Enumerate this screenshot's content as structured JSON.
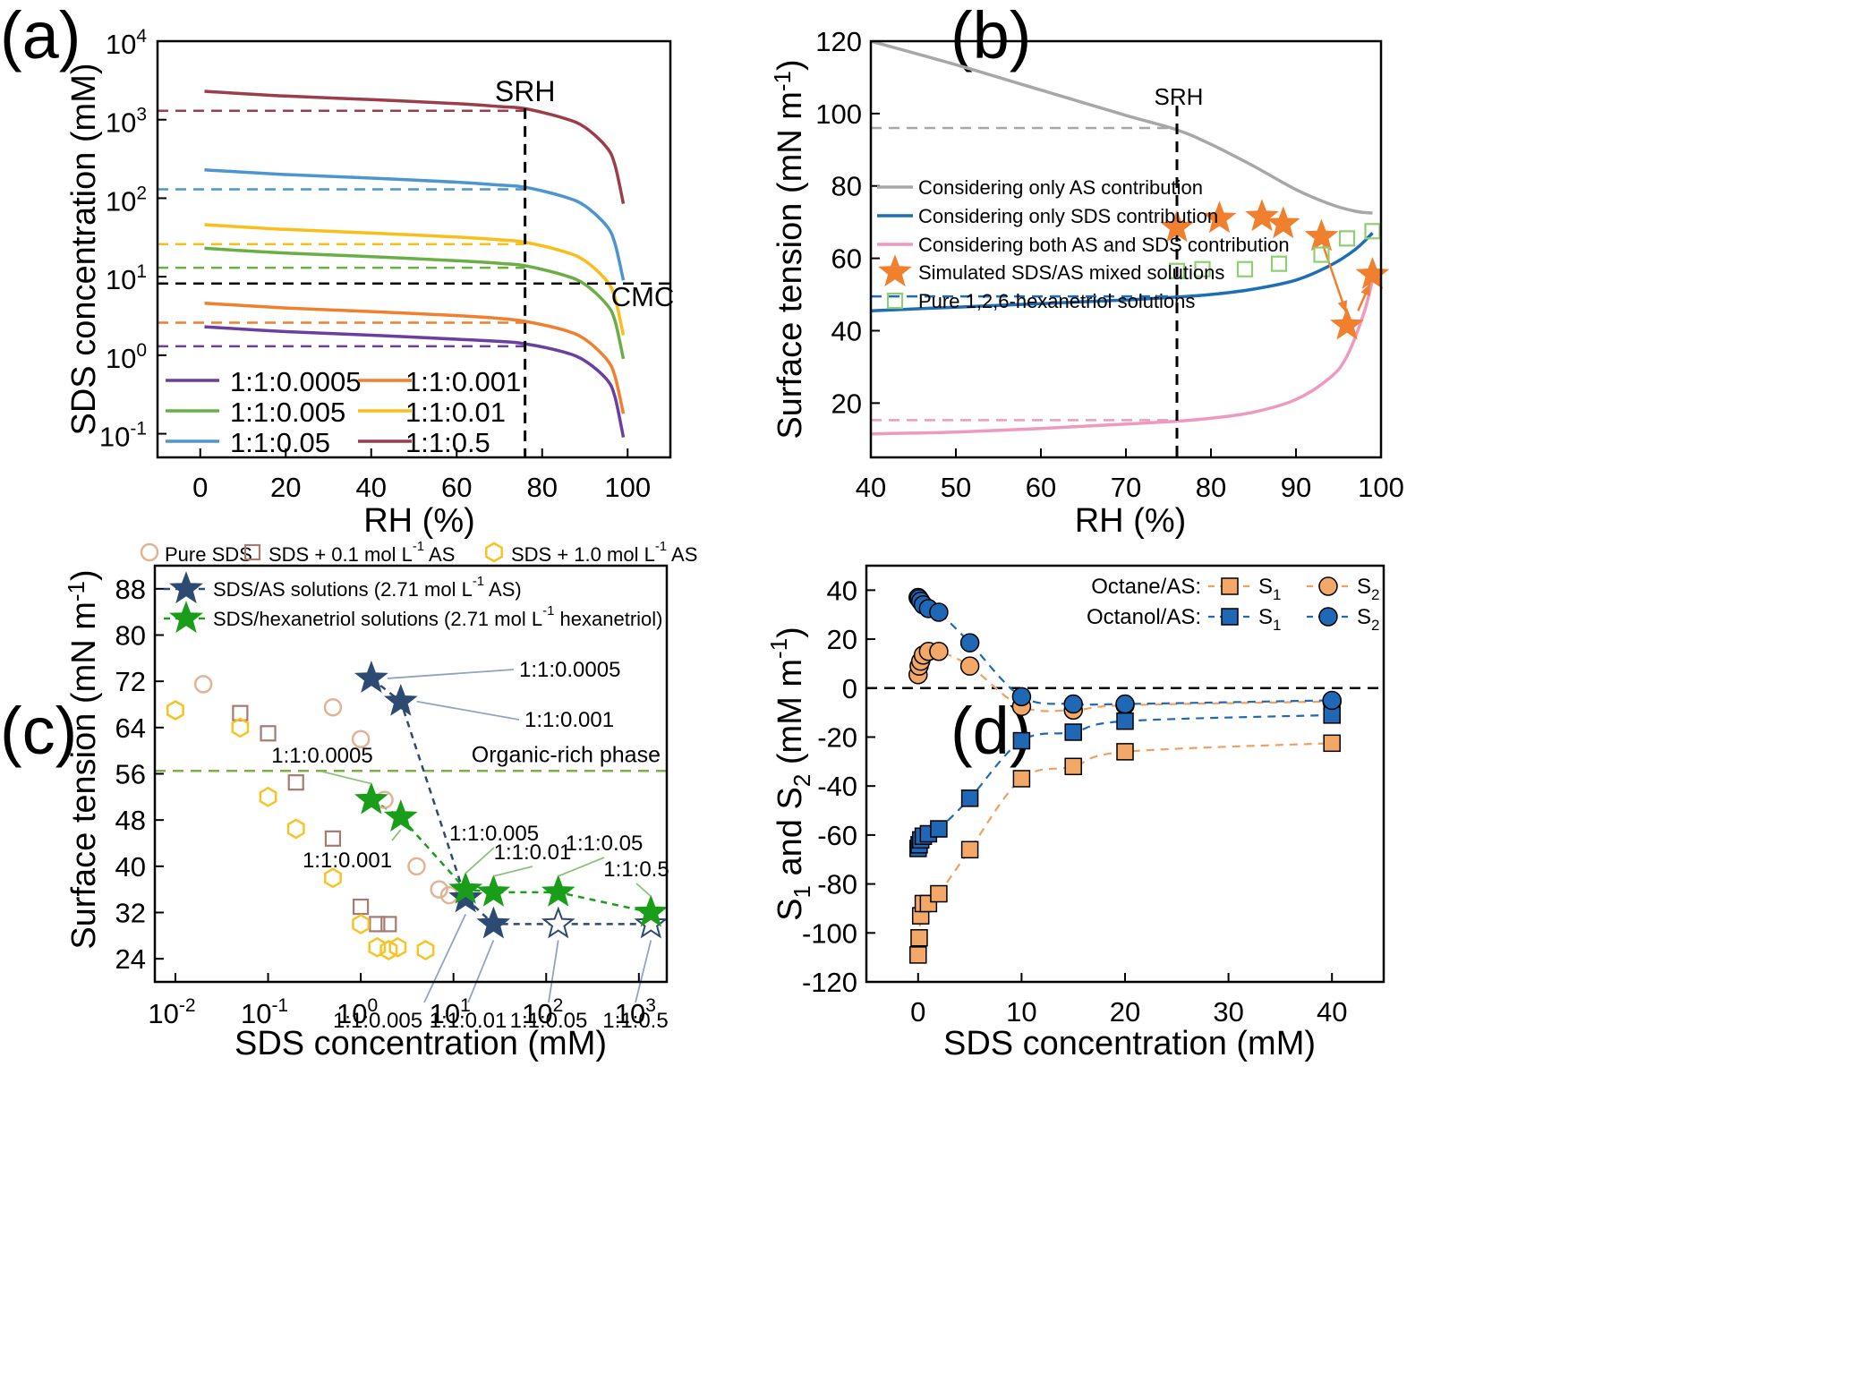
{
  "panel_labels": [
    "(a)",
    "(b)",
    "(c)",
    "(d)"
  ],
  "chart_data": [
    {
      "type": "line",
      "title": "",
      "xlabel": "RH (%)",
      "ylabel": "SDS concentration (mM)",
      "xlim": [
        -10,
        110
      ],
      "ylim": [
        0.05,
        10000
      ],
      "yscale": "log",
      "xticks": [
        0,
        20,
        40,
        60,
        80,
        100
      ],
      "yticks": [
        {
          "value": 0.1,
          "base": "10",
          "exp": "-1"
        },
        {
          "value": 1,
          "base": "10",
          "exp": "0"
        },
        {
          "value": 10,
          "base": "10",
          "exp": "1"
        },
        {
          "value": 100,
          "base": "10",
          "exp": "2"
        },
        {
          "value": 1000,
          "base": "10",
          "exp": "3"
        },
        {
          "value": 10000,
          "base": "10",
          "exp": "4"
        }
      ],
      "legend_position": "bottom-left",
      "annotations": [
        {
          "text": "SRH",
          "x": 76,
          "y": 3000
        },
        {
          "text": "CMC",
          "x": 101,
          "y": 6.5
        }
      ],
      "vlines": [
        {
          "x": 76,
          "color": "#000000",
          "style": "dashed"
        }
      ],
      "cmc_line": {
        "y": 8.2,
        "color": "#000000",
        "style": "dashed"
      },
      "series": [
        {
          "name": "1:1:0.0005",
          "color": "#6b3fa0",
          "x": [
            1,
            20,
            40,
            60,
            70,
            76,
            85,
            90,
            95,
            97,
            99
          ],
          "values": [
            2.3,
            2.0,
            1.8,
            1.6,
            1.5,
            1.4,
            1.1,
            0.85,
            0.5,
            0.3,
            0.09
          ],
          "srh_y": 1.3
        },
        {
          "name": "1:1:0.001",
          "color": "#f07f2e",
          "x": [
            1,
            20,
            40,
            60,
            70,
            76,
            85,
            90,
            95,
            97,
            99
          ],
          "values": [
            4.6,
            4.0,
            3.6,
            3.2,
            2.95,
            2.7,
            2.1,
            1.6,
            0.9,
            0.55,
            0.18
          ],
          "srh_y": 2.6
        },
        {
          "name": "1:1:0.005",
          "color": "#6aaf45",
          "x": [
            1,
            20,
            40,
            60,
            70,
            76,
            85,
            90,
            95,
            97,
            99
          ],
          "values": [
            23,
            20,
            18,
            16,
            14.8,
            13.8,
            10.5,
            8,
            4.5,
            2.8,
            0.9
          ],
          "srh_y": 13
        },
        {
          "name": "1:1:0.01",
          "color": "#f9be1a",
          "x": [
            1,
            20,
            40,
            60,
            70,
            76,
            85,
            90,
            95,
            97,
            99
          ],
          "values": [
            46,
            40,
            36,
            32,
            29.5,
            27.5,
            21,
            16,
            9,
            5.5,
            1.8
          ],
          "srh_y": 26
        },
        {
          "name": "1:1:0.05",
          "color": "#4c95cf",
          "x": [
            1,
            20,
            40,
            60,
            70,
            76,
            85,
            90,
            95,
            97,
            99
          ],
          "values": [
            230,
            200,
            180,
            160,
            147,
            138,
            105,
            80,
            45,
            27,
            9
          ],
          "srh_y": 130
        },
        {
          "name": "1:1:0.5",
          "color": "#9c3d4a",
          "x": [
            1,
            20,
            40,
            60,
            70,
            76,
            85,
            90,
            95,
            97,
            99
          ],
          "values": [
            2300,
            2000,
            1800,
            1600,
            1470,
            1380,
            1050,
            800,
            450,
            270,
            85
          ],
          "srh_y": 1300
        }
      ]
    },
    {
      "type": "line",
      "title": "",
      "xlabel": "RH (%)",
      "ylabel": "Surface tension (mN m-1)",
      "ylabel_main": "Surface tension (mN m",
      "ylabel_sup": "-1",
      "ylabel_end": ")",
      "xlim": [
        40,
        100
      ],
      "ylim": [
        5,
        120
      ],
      "xticks": [
        40,
        50,
        60,
        70,
        80,
        90,
        100
      ],
      "yticks": [
        20,
        40,
        60,
        80,
        100,
        120
      ],
      "legend_position": "center-left",
      "annotations": [
        {
          "text": "SRH",
          "x": 76,
          "y": 103
        }
      ],
      "vlines": [
        {
          "x": 76,
          "color": "#000000",
          "style": "dashed"
        }
      ],
      "series": [
        {
          "name": "Considering only AS contribution",
          "kind": "line",
          "color": "#a7a7a7",
          "x": [
            40,
            50,
            60,
            70,
            76,
            80,
            85,
            90,
            94,
            97,
            99
          ],
          "values": [
            120,
            113.5,
            106.5,
            99.5,
            95.5,
            91.5,
            85.5,
            79,
            75,
            73,
            72.5
          ],
          "srh_y": 96
        },
        {
          "name": "Considering only SDS contribution",
          "kind": "line",
          "color": "#1e6eb4",
          "x": [
            40,
            50,
            60,
            70,
            76,
            80,
            85,
            90,
            94,
            97,
            99
          ],
          "values": [
            45.5,
            46.5,
            47.5,
            48.5,
            49.3,
            50,
            51.5,
            54,
            58,
            62.5,
            67
          ],
          "srh_y": 49.5
        },
        {
          "name": "Considering both AS and SDS contribution",
          "kind": "line",
          "color": "#ee9ac0",
          "x": [
            40,
            50,
            60,
            70,
            76,
            80,
            85,
            90,
            94,
            96,
            98,
            99
          ],
          "values": [
            11.5,
            12,
            13,
            14.2,
            15,
            15.8,
            17.5,
            21,
            27,
            33,
            45,
            54
          ],
          "srh_y": 15.3
        },
        {
          "name": "Simulated SDS/AS mixed solutions",
          "kind": "star",
          "color": "#f07f2e",
          "x": [
            76,
            81,
            86,
            88.5,
            93,
            96,
            99
          ],
          "values": [
            68.5,
            71,
            71.5,
            69.5,
            66,
            41.5,
            55.5
          ]
        },
        {
          "name": "Pure 1,2,6-hexanetriol solutions",
          "kind": "square-open",
          "color": "#8fcf71",
          "x": [
            76,
            79,
            84,
            88,
            93,
            96,
            99
          ],
          "values": [
            56.5,
            57,
            57,
            58.5,
            61,
            65.5,
            67.5
          ]
        }
      ],
      "arrows": [
        {
          "x1": 93.2,
          "y1": 63.5,
          "x2": 95.9,
          "y2": 45
        },
        {
          "x1": 97.3,
          "y1": 45.5,
          "x2": 98.7,
          "y2": 53
        }
      ]
    },
    {
      "type": "scatter",
      "title": "",
      "xlabel": "SDS concentration (mM)",
      "ylabel": "Surface tension (mN m-1)",
      "ylabel_main": "Surface tension (mN m",
      "ylabel_sup": "-1",
      "ylabel_end": ")",
      "xscale": "log",
      "xlim": [
        0.006,
        2000
      ],
      "ylim": [
        20,
        92
      ],
      "xticks": [
        {
          "value": 0.01,
          "base": "10",
          "exp": "-2"
        },
        {
          "value": 0.1,
          "base": "10",
          "exp": "-1"
        },
        {
          "value": 1,
          "base": "10",
          "exp": "0"
        },
        {
          "value": 10,
          "base": "10",
          "exp": "1"
        },
        {
          "value": 100,
          "base": "10",
          "exp": "2"
        },
        {
          "value": 1000,
          "base": "10",
          "exp": "3"
        }
      ],
      "yticks": [
        24,
        32,
        40,
        48,
        56,
        64,
        72,
        80,
        88
      ],
      "legend_position": "top",
      "hline": {
        "y": 56.5,
        "label": "Organic-rich phase",
        "color": "#7bb144"
      },
      "series": [
        {
          "name": "Pure SDS",
          "marker": "circle-open",
          "color": "#e0b394",
          "x": [
            0.02,
            0.5,
            1,
            1.8,
            4,
            7,
            9
          ],
          "values": [
            71.5,
            67.5,
            62,
            51.5,
            40,
            36,
            35
          ]
        },
        {
          "name_main": "SDS + 0.1 mol L",
          "name_sup": "-1",
          "name_end": " AS",
          "marker": "square-open",
          "color": "#a57a70",
          "x": [
            0.05,
            0.1,
            0.2,
            0.5,
            1,
            1.5,
            2
          ],
          "values": [
            66.5,
            63,
            54.5,
            44.8,
            33,
            30,
            30
          ]
        },
        {
          "name_main": "SDS + 1.0 mol L",
          "name_sup": "-1",
          "name_end": " AS",
          "marker": "hexagon-open",
          "color": "#f7c325",
          "x": [
            0.01,
            0.05,
            0.1,
            0.2,
            0.5,
            1,
            1.5,
            2,
            2.5,
            5
          ],
          "values": [
            67,
            64,
            52,
            46.5,
            38,
            30,
            26,
            25.5,
            26,
            25.5
          ]
        },
        {
          "name_main": "SDS/AS solutions (2.71 mol L",
          "name_sup": "-1",
          "name_end": " AS)",
          "marker": "star",
          "color": "#2d4a73",
          "dashed": true,
          "x": [
            1.3,
            2.7,
            13.5,
            27,
            135,
            1350
          ],
          "values": [
            72.5,
            68.5,
            34.5,
            30,
            30,
            30
          ],
          "filled": [
            true,
            true,
            true,
            true,
            false,
            false
          ],
          "labels": [
            "1:1:0.0005",
            "1:1:0.001",
            "1:1:0.005",
            "1:1:0.01",
            "1:1:0.05",
            "1:1:0.5"
          ],
          "label_color": "#8fa4c4"
        },
        {
          "name_main": "SDS/hexanetriol solutions (2.71 mol L",
          "name_sup": "-1",
          "name_end": " hexanetriol)",
          "marker": "star",
          "color": "#1a9e1a",
          "dashed": true,
          "x": [
            1.3,
            2.7,
            13.5,
            27,
            135,
            1350
          ],
          "values": [
            51.5,
            48.5,
            36,
            35.5,
            35.5,
            32
          ],
          "filled": [
            true,
            true,
            true,
            true,
            true,
            true
          ],
          "labels": [
            "1:1:0.0005",
            "1:1:0.001",
            "1:1:0.005",
            "1:1:0.01",
            "1:1:0.05",
            "1:1:0.5"
          ],
          "label_color": "#8fc07a"
        }
      ]
    },
    {
      "type": "scatter",
      "title": "",
      "xlabel": "SDS concentration (mM)",
      "ylabel": "S1 and S2 (mM m-1)",
      "xlim": [
        -5,
        45
      ],
      "ylim": [
        -120,
        50
      ],
      "xticks": [
        0,
        10,
        20,
        30,
        40
      ],
      "yticks": [
        -120,
        -100,
        -80,
        -60,
        -40,
        -20,
        0,
        20,
        40
      ],
      "legend_position": "top-right",
      "legend_groups": [
        "Octane/AS:",
        "Octanol/AS:"
      ],
      "hline": {
        "y": 0,
        "color": "#000000",
        "style": "dashed"
      },
      "series": [
        {
          "group": "Octane/AS:",
          "name": "S1",
          "marker": "square",
          "color": "#f3a867",
          "line_color": "#f0a060",
          "x": [
            0,
            0.1,
            0.25,
            0.5,
            1,
            2,
            5,
            10,
            15,
            20,
            40
          ],
          "values": [
            -109,
            -102,
            -93,
            -88,
            -88,
            -84,
            -66,
            -37,
            -32,
            -26,
            -22.5
          ]
        },
        {
          "group": "Octane/AS:",
          "name": "S2",
          "marker": "circle",
          "color": "#f3a867",
          "line_color": "#f0a060",
          "x": [
            0,
            0.1,
            0.25,
            0.5,
            1,
            2,
            5,
            10,
            15,
            20,
            40
          ],
          "values": [
            5.5,
            9,
            11,
            13.5,
            15,
            15,
            9,
            -7.5,
            -9,
            -7,
            -5.5
          ]
        },
        {
          "group": "Octanol/AS:",
          "name": "S1",
          "marker": "square",
          "color": "#1f68b5",
          "line_color": "#1f68b5",
          "x": [
            0,
            0.1,
            0.25,
            0.5,
            1,
            2,
            5,
            10,
            15,
            20,
            40
          ],
          "values": [
            -65.5,
            -64,
            -62,
            -60.5,
            -59.5,
            -57.5,
            -45,
            -21.5,
            -18,
            -13.5,
            -11
          ]
        },
        {
          "group": "Octanol/AS:",
          "name": "S2",
          "marker": "circle",
          "color": "#1f68b5",
          "line_color": "#1f68b5",
          "x": [
            0,
            0.1,
            0.25,
            0.5,
            1,
            2,
            5,
            10,
            15,
            20,
            40
          ],
          "values": [
            37,
            36.5,
            35.5,
            34,
            32.5,
            31,
            18.5,
            -3.5,
            -6.5,
            -6.5,
            -5
          ]
        }
      ]
    }
  ]
}
